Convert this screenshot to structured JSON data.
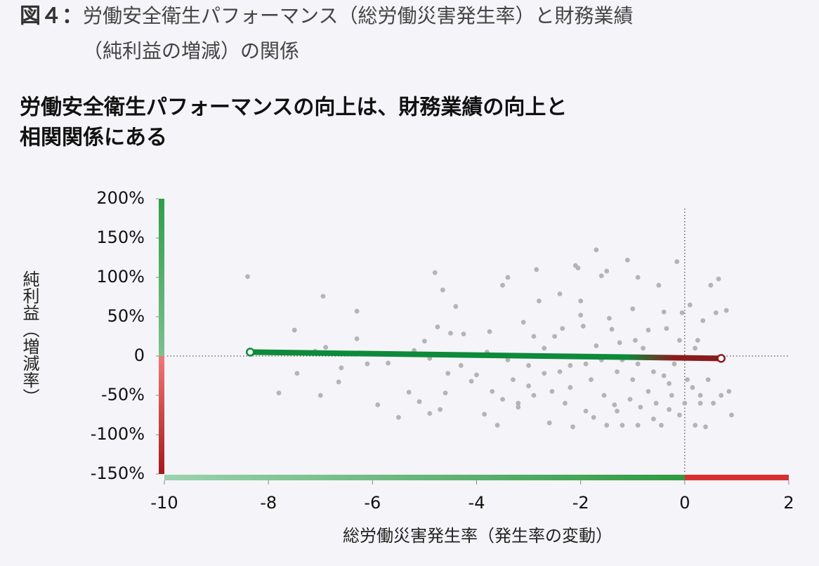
{
  "chart_data": {
    "type": "scatter",
    "figure_label": "図４：",
    "title": [
      "労働安全衛生パフォーマンス（総労働災害発生率）と財務業績",
      "（純利益の増減）の関係"
    ],
    "subtitle": [
      "労働安全衛生パフォーマンスの向上は、財務業績の向上と",
      "相関関係にある"
    ],
    "x_label": "総労働災害発生率（発生率の変動）",
    "y_label": "純利益（増減率）",
    "xlim": [
      -10,
      2
    ],
    "xticks": [
      -10,
      -8,
      -6,
      -4,
      -2,
      0,
      2
    ],
    "ylim": [
      -150,
      200
    ],
    "yticks": [
      {
        "value": 200,
        "label": "200%"
      },
      {
        "value": 150,
        "label": "150%"
      },
      {
        "value": 100,
        "label": "100%"
      },
      {
        "value": 50,
        "label": "50%"
      },
      0,
      {
        "value": -50,
        "label": "-50%"
      },
      {
        "value": -100,
        "label": "-100%"
      },
      {
        "value": -150,
        "label": "-150%"
      }
    ],
    "series": [
      {
        "color": "#b4b4b4",
        "x": [
          -8.4,
          -7.8,
          -7.5,
          -7.45,
          -7.0,
          -6.95,
          -6.9,
          -7.1,
          -6.65,
          -6.6,
          -6.3,
          -6.3,
          -6.1,
          -5.9,
          -5.7,
          -5.5,
          -5.3,
          -5.2,
          -5.1,
          -5.0,
          -4.9,
          -4.8,
          -4.75,
          -4.7,
          -4.65,
          -4.6,
          -4.5,
          -4.55,
          -4.4,
          -4.3,
          -4.25,
          -4.1,
          -4.0,
          -3.85,
          -3.75,
          -3.7,
          -3.6,
          -3.5,
          -3.4,
          -3.4,
          -3.3,
          -3.2,
          -3.1,
          -3.0,
          -2.9,
          -2.85,
          -2.8,
          -2.7,
          -2.6,
          -2.55,
          -2.4,
          -2.35,
          -2.3,
          -2.2,
          -2.15,
          -2.1,
          -2.05,
          -2.0,
          -1.95,
          -1.9,
          -1.8,
          -1.75,
          -1.7,
          -1.6,
          -1.55,
          -1.5,
          -1.45,
          -1.4,
          -1.35,
          -1.3,
          -1.25,
          -1.2,
          -1.1,
          -1.05,
          -1.0,
          -0.95,
          -0.9,
          -0.85,
          -0.8,
          -0.7,
          -0.7,
          -0.6,
          -0.55,
          -0.5,
          -0.45,
          -0.4,
          -0.35,
          -0.3,
          -0.25,
          -0.2,
          -0.15,
          -0.1,
          -0.05,
          0.0,
          0.05,
          0.1,
          0.15,
          0.2,
          0.25,
          0.3,
          0.35,
          0.4,
          0.45,
          0.5,
          0.55,
          0.6,
          0.65,
          0.7,
          0.8,
          0.85,
          0.9,
          -1.9,
          -2.5,
          -3.8,
          -2.7,
          -1.6,
          -0.9,
          -3.0,
          -4.9,
          -2.2,
          -1.3,
          -0.6,
          -3.5,
          -2.0,
          -1.0,
          -0.3,
          0.2,
          -0.9,
          -1.7,
          -1.5,
          -2.4,
          -3.2,
          -0.4,
          -0.1,
          0.3,
          -1.2,
          -2.9
        ],
        "values": [
          101,
          -47,
          33,
          -22,
          -50,
          76,
          11,
          6,
          -33,
          -15,
          57,
          22,
          -10,
          -62,
          -9,
          -78,
          -46,
          7,
          -58,
          19,
          -73,
          106,
          37,
          -68,
          84,
          -47,
          29,
          -22,
          63,
          -12,
          28,
          -32,
          -24,
          -74,
          31,
          -45,
          -88,
          90,
          100,
          -5,
          -30,
          -65,
          43,
          -38,
          -50,
          110,
          70,
          -22,
          -85,
          -45,
          79,
          35,
          -60,
          -12,
          -90,
          115,
          112,
          52,
          38,
          -70,
          -30,
          -78,
          13,
          102,
          -50,
          -88,
          48,
          34,
          -62,
          -20,
          17,
          -88,
          122,
          -55,
          -30,
          20,
          -88,
          -65,
          10,
          33,
          -45,
          -20,
          -60,
          90,
          -88,
          56,
          35,
          -35,
          -50,
          -10,
          120,
          -75,
          55,
          -60,
          -30,
          65,
          -40,
          -88,
          20,
          -50,
          45,
          -90,
          -30,
          90,
          -60,
          55,
          98,
          -50,
          58,
          -45,
          -75,
          -10,
          25,
          5,
          10,
          -5,
          -10,
          -12,
          -3,
          -40,
          -70,
          -80,
          -55,
          70,
          60,
          -68,
          10,
          100,
          135,
          108,
          -20,
          -60,
          -25,
          20,
          -60,
          -5,
          25
        ]
      },
      {
        "colors": [
          "#0d8a3a",
          "#8b1a1a"
        ],
        "x": [
          -8.35,
          0.7
        ],
        "values": [
          5,
          -3
        ]
      }
    ]
  }
}
